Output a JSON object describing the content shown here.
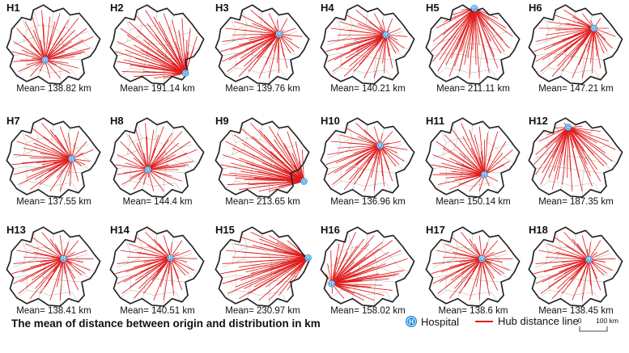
{
  "panels": [
    {
      "id": "H1",
      "mean": "Mean= 138.82 km"
    },
    {
      "id": "H2",
      "mean": "Mean= 191.14 km"
    },
    {
      "id": "H3",
      "mean": "Mean= 139.76 km"
    },
    {
      "id": "H4",
      "mean": "Mean= 140.21 km"
    },
    {
      "id": "H5",
      "mean": "Mean= 211.11 km"
    },
    {
      "id": "H6",
      "mean": "Mean= 147.21 km"
    },
    {
      "id": "H7",
      "mean": "Mean= 137.55 km"
    },
    {
      "id": "H8",
      "mean": "Mean= 144.4 km"
    },
    {
      "id": "H9",
      "mean": "Mean= 213.65 km"
    },
    {
      "id": "H10",
      "mean": "Mean= 136.96 km"
    },
    {
      "id": "H11",
      "mean": "Mean= 150.14 km"
    },
    {
      "id": "H12",
      "mean": "Mean= 187.35 km"
    },
    {
      "id": "H13",
      "mean": "Mean= 138.41 km"
    },
    {
      "id": "H14",
      "mean": "Mean= 140.51 km"
    },
    {
      "id": "H15",
      "mean": "Mean= 230.97 km"
    },
    {
      "id": "H16",
      "mean": "Mean= 158.02 km"
    },
    {
      "id": "H17",
      "mean": "Mean= 138.6 km"
    },
    {
      "id": "H18",
      "mean": "Mean= 138.45 km"
    }
  ],
  "footer": {
    "title": "The mean of distance between origin and distribution in km",
    "legend_hospital_icon": "H",
    "legend_hospital": "Hospital",
    "legend_line": "Hub distance line",
    "scale_0": "0",
    "scale_100": "100 km"
  },
  "colors": {
    "line": "#e11b1b",
    "hospital": "#1f8ad6",
    "outline": "#222222",
    "district": "#9a9a9a"
  },
  "icons": {
    "hospital": "hospital-h-icon"
  }
}
